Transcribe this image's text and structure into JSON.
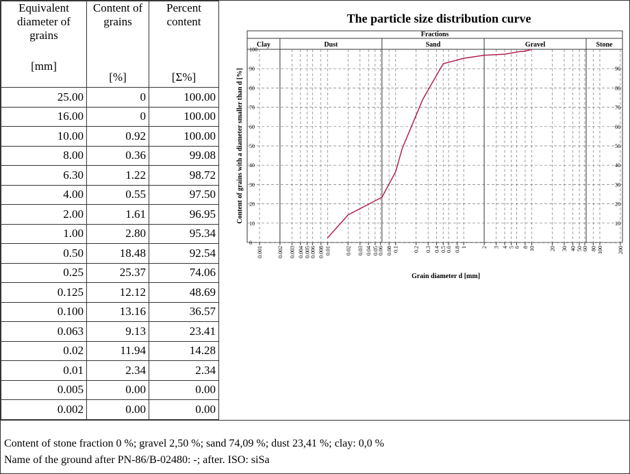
{
  "table": {
    "header": [
      {
        "title": "Equivalent diameter of grains",
        "unit": "[mm]"
      },
      {
        "title": "Content of grains",
        "unit": "[%]"
      },
      {
        "title": "Percent content",
        "unit": "[Σ%]"
      }
    ],
    "rows": [
      [
        "25.00",
        "0",
        "100.00"
      ],
      [
        "16.00",
        "0",
        "100.00"
      ],
      [
        "10.00",
        "0.92",
        "100.00"
      ],
      [
        "8.00",
        "0.36",
        "99.08"
      ],
      [
        "6.30",
        "1.22",
        "98.72"
      ],
      [
        "4.00",
        "0.55",
        "97.50"
      ],
      [
        "2.00",
        "1.61",
        "96.95"
      ],
      [
        "1.00",
        "2.80",
        "95.34"
      ],
      [
        "0.50",
        "18.48",
        "92.54"
      ],
      [
        "0.25",
        "25.37",
        "74.06"
      ],
      [
        "0.125",
        "12.12",
        "48.69"
      ],
      [
        "0.100",
        "13.16",
        "36.57"
      ],
      [
        "0.063",
        "9.13",
        "23.41"
      ],
      [
        "0.02",
        "11.94",
        "14.28"
      ],
      [
        "0.01",
        "2.34",
        "2.34"
      ],
      [
        "0.005",
        "0.00",
        "0.00"
      ],
      [
        "0.002",
        "0.00",
        "0.00"
      ]
    ]
  },
  "footer": [
    "Content of stone fraction 0 %; gravel 2,50 %; sand 74,09 %; dust 23,41 %; clay: 0,0 %",
    "Name of the ground after PN-86/B-02480: -; after. ISO: siSa"
  ],
  "chart_data": {
    "type": "line",
    "title": "The particle size distribution curve",
    "fractions_label": "Fractions",
    "fractions": [
      "Clay",
      "Dust",
      "Sand",
      "Gravel",
      "Stone"
    ],
    "fraction_bounds": [
      0.002,
      0.063,
      2,
      63
    ],
    "x_label": "Grain diameter d [mm]",
    "y_label": "Content of grains with a diameter smaller than d [%]",
    "x": [
      0.01,
      0.02,
      0.063,
      0.1,
      0.125,
      0.25,
      0.5,
      1,
      2,
      4,
      6.3,
      8,
      10
    ],
    "values": [
      2.34,
      14.28,
      23.41,
      36.57,
      48.69,
      74.06,
      92.54,
      95.34,
      96.95,
      97.5,
      98.72,
      99.08,
      100
    ],
    "color": "#b3204d",
    "log_x": true,
    "xlim": [
      0.00066,
      215
    ],
    "ylim": [
      0,
      100
    ],
    "xticks": [
      0.001,
      0.002,
      0.003,
      0.004,
      0.005,
      0.006,
      0.008,
      0.01,
      0.02,
      0.03,
      0.04,
      0.05,
      0.06,
      0.08,
      0.1,
      0.2,
      0.3,
      0.4,
      0.5,
      0.6,
      0.8,
      1,
      2,
      3,
      4,
      5,
      6,
      8,
      10,
      20,
      30,
      40,
      50,
      60,
      80,
      100,
      200
    ],
    "yticks": [
      0,
      10,
      20,
      30,
      40,
      50,
      60,
      70,
      80,
      90,
      100
    ],
    "y2ticks": [
      10,
      20,
      30,
      40,
      50,
      60,
      70,
      80,
      90
    ],
    "grid": true
  }
}
